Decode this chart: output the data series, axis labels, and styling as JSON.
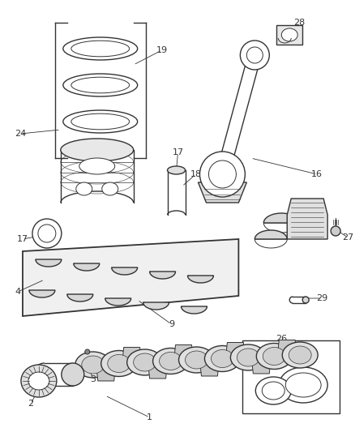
{
  "bg_color": "#ffffff",
  "line_color": "#333333",
  "label_color": "#333333",
  "fig_width": 4.38,
  "fig_height": 5.33,
  "dpi": 100
}
